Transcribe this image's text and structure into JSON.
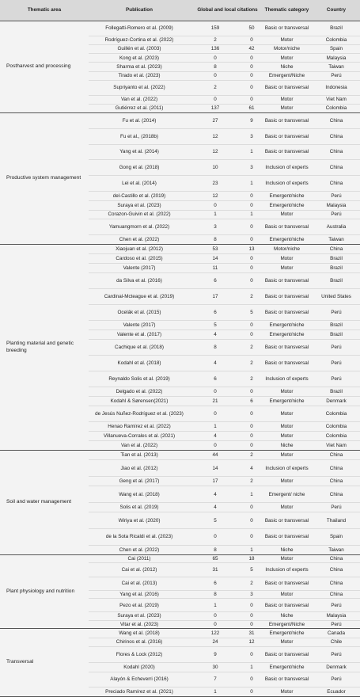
{
  "header": [
    "Thematic area",
    "Publication",
    "Global and local citations",
    "Thematic category",
    "Country"
  ],
  "groups": [
    {
      "area": "Postharvest and processing",
      "rows": [
        {
          "publication": "Follegatti-Romero et al. (2009)",
          "global": 159,
          "local": 50,
          "category": "Basic or transversal",
          "country": "Brazil"
        },
        {
          "publication": "Rodríguez-Cortina et al. (2022)",
          "global": 2,
          "local": 0,
          "category": "Motor",
          "country": "Colombia"
        },
        {
          "publication": "Guillén et al. (2003)",
          "global": 136,
          "local": 42,
          "category": "Motor/niche",
          "country": "Spain"
        },
        {
          "publication": "Kong et al. (2023)",
          "global": 0,
          "local": 0,
          "category": "Motor",
          "country": "Malaysia"
        },
        {
          "publication": "Sharma et al. (2023)",
          "global": 8,
          "local": 0,
          "category": "Niche",
          "country": "Taiwan"
        },
        {
          "publication": "Tirado et al. (2023)",
          "global": 0,
          "local": 0,
          "category": "Emergent/Niche",
          "country": "Perú"
        },
        {
          "publication": "Supriyanto et al. (2022)",
          "global": 2,
          "local": 0,
          "category": "Basic or transversal",
          "country": "Indonesia"
        },
        {
          "publication": "Van et al. (2022)",
          "global": 0,
          "local": 0,
          "category": "Motor",
          "country": "Viet Nam"
        },
        {
          "publication": "Gutiérrez et al. (2011)",
          "global": 137,
          "local": 61,
          "category": "Motor",
          "country": "Colombia"
        }
      ]
    },
    {
      "area": "Productive system management",
      "rows": [
        {
          "publication": "Fu et al. (2014)",
          "global": 27,
          "local": 9,
          "category": "Basic or transversal",
          "country": "China"
        },
        {
          "publication": "Fu et al., (2018b)",
          "global": 12,
          "local": 3,
          "category": "Basic or transversal",
          "country": "China"
        },
        {
          "publication": "Yang et al. (2014)",
          "global": 12,
          "local": 1,
          "category": "Basic or transversal",
          "country": "China"
        },
        {
          "publication": "Gong et al. (2018)",
          "global": 10,
          "local": 3,
          "category": "Inclusion of experts",
          "country": "China"
        },
        {
          "publication": "Lei et al. (2014)",
          "global": 23,
          "local": 1,
          "category": "Inclusion of experts",
          "country": "China"
        },
        {
          "publication": "del-Castillo et al. (2019)",
          "global": 12,
          "local": 0,
          "category": "Emergent/niche",
          "country": "Perú"
        },
        {
          "publication": "Suraya et al. (2023)",
          "global": 0,
          "local": 0,
          "category": "Emergent/niche",
          "country": "Malaysia"
        },
        {
          "publication": "Corazon-Guivin et al. (2022)",
          "global": 1,
          "local": 1,
          "category": "Motor",
          "country": "Perú"
        },
        {
          "publication": "Yamuangmorn et al. (2022)",
          "global": 3,
          "local": 0,
          "category": "Basic or transversal",
          "country": "Australia"
        },
        {
          "publication": "Chen et al. (2022)",
          "global": 8,
          "local": 0,
          "category": "Emergent/niche",
          "country": "Taiwan"
        }
      ]
    },
    {
      "area": "Planting material and genetic breeding",
      "rows": [
        {
          "publication": "Xiaojuan et al. (2012)",
          "global": 53,
          "local": 13,
          "category": "Motor/niche",
          "country": "China"
        },
        {
          "publication": "Cardoso et al. (2015)",
          "global": 14,
          "local": 0,
          "category": "Motor",
          "country": "Brazil"
        },
        {
          "publication": "Valente (2017)",
          "global": 11,
          "local": 0,
          "category": "Motor",
          "country": "Brazil"
        },
        {
          "publication": "da Silva et al. (2016)",
          "global": 6,
          "local": 0,
          "category": "Basic or transversal",
          "country": "Brazil"
        },
        {
          "publication": "Cardinal-Mcteague et al. (2019)",
          "global": 17,
          "local": 2,
          "category": "Basic or transversal",
          "country": "United States"
        },
        {
          "publication": "Ocelák et al. (2015)",
          "global": 6,
          "local": 5,
          "category": "Basic or transversal",
          "country": "Perú"
        },
        {
          "publication": "Valente (2017)",
          "global": 5,
          "local": 0,
          "category": "Emergent/niche",
          "country": "Brazil"
        },
        {
          "publication": "Valente et al. (2017)",
          "global": 4,
          "local": 0,
          "category": "Emergent/niche",
          "country": "Brazil"
        },
        {
          "publication": "Cachique et al. (2018)",
          "global": 8,
          "local": 2,
          "category": "Basic or transversal",
          "country": "Perú"
        },
        {
          "publication": "Kodahl et al. (2018)",
          "global": 4,
          "local": 2,
          "category": "Basic or transversal",
          "country": "Perú"
        },
        {
          "publication": "Reynaldo Solis et al. (2019)",
          "global": 6,
          "local": 2,
          "category": "Inclusion of experts",
          "country": "Perú"
        },
        {
          "publication": "Delgado et al. (2022)",
          "global": 0,
          "local": 0,
          "category": "Motor",
          "country": "Brazil"
        },
        {
          "publication": "Kodahl & Sørensen(2021)",
          "global": 21,
          "local": 6,
          "category": "Emergent/niche",
          "country": "Denmark"
        },
        {
          "publication": "de Jesús Nuñez-Rodríguez et al. (2023)",
          "global": 0,
          "local": 0,
          "category": "Motor",
          "country": "Colombia"
        },
        {
          "publication": "Henao Ramírez et al. (2022)",
          "global": 1,
          "local": 0,
          "category": "Motor",
          "country": "Colombia"
        },
        {
          "publication": "Villanueva-Corrales et al. (2021)",
          "global": 4,
          "local": 0,
          "category": "Motor",
          "country": "Colombia"
        },
        {
          "publication": "Van et al. (2022)",
          "global": 0,
          "local": 0,
          "category": "Niche",
          "country": "Viet Nam"
        }
      ]
    },
    {
      "area": "Soil and water management",
      "rows": [
        {
          "publication": "Tian et al. (2013)",
          "global": 44,
          "local": 2,
          "category": "Motor",
          "country": "China"
        },
        {
          "publication": "Jiao et al. (2012)",
          "global": 14,
          "local": 4,
          "category": "Inclusion of experts",
          "country": "China"
        },
        {
          "publication": "Geng et al. (2017)",
          "global": 17,
          "local": 2,
          "category": "Motor",
          "country": "China"
        },
        {
          "publication": "Wang et al. (2018)",
          "global": 4,
          "local": 1,
          "category": "Emergent/ niche",
          "country": "China"
        },
        {
          "publication": "Solis et al. (2019)",
          "global": 4,
          "local": 0,
          "category": "Motor",
          "country": "Perú"
        },
        {
          "publication": "Wiriya et al. (2020)",
          "global": 5,
          "local": 0,
          "category": "Basic or transversal",
          "country": "Thailand"
        },
        {
          "publication": "de la Sota Ricaldi et al. (2023)",
          "global": 0,
          "local": 0,
          "category": "Basic or transversal",
          "country": "Spain"
        },
        {
          "publication": "Chen et al. (2022)",
          "global": 8,
          "local": 1,
          "category": "Niche",
          "country": "Taiwan"
        }
      ]
    },
    {
      "area": "Plant physiology and nutrition",
      "rows": [
        {
          "publication": "Cai (2011)",
          "global": 65,
          "local": 18,
          "category": "Motor",
          "country": "China"
        },
        {
          "publication": "Cai et al. (2012)",
          "global": 31,
          "local": 5,
          "category": "Inclusion of experts",
          "country": "China"
        },
        {
          "publication": "Cai et al. (2013)",
          "global": 6,
          "local": 2,
          "category": "Basic or transversal",
          "country": "China"
        },
        {
          "publication": "Yang et al. (2016)",
          "global": 8,
          "local": 3,
          "category": "Motor",
          "country": "China"
        },
        {
          "publication": "Pezo et al. (2019)",
          "global": 1,
          "local": 0,
          "category": "Basic or transversal",
          "country": "Perú"
        },
        {
          "publication": "Suraya et al. (2023)",
          "global": 0,
          "local": 0,
          "category": "Niche",
          "country": "Malaysia"
        },
        {
          "publication": "Vitar et al. (2023)",
          "global": 0,
          "local": 0,
          "category": "Emergent/Niche",
          "country": "Perú"
        }
      ]
    },
    {
      "area": "Transversal",
      "rows": [
        {
          "publication": "Wang et al. (2018)",
          "global": 122,
          "local": 31,
          "category": "Emergent/niche",
          "country": "Canada"
        },
        {
          "publication": "Chirinos et al. (2016)",
          "global": 24,
          "local": 12,
          "category": "Motor",
          "country": "Chile"
        },
        {
          "publication": "Flores & Lock (2012)",
          "global": 9,
          "local": 0,
          "category": "Basic or transversal",
          "country": "Perú"
        },
        {
          "publication": "Kodahl (2020)",
          "global": 30,
          "local": 1,
          "category": "Emergent/niche",
          "country": "Denmark"
        },
        {
          "publication": "Alayón & Echeverri (2016)",
          "global": 7,
          "local": 0,
          "category": "Basic or transversal",
          "country": "Perú"
        },
        {
          "publication": "Preciado Ramírez et al. (2021)",
          "global": 1,
          "local": 0,
          "category": "Motor",
          "country": "Ecuador"
        }
      ]
    }
  ]
}
